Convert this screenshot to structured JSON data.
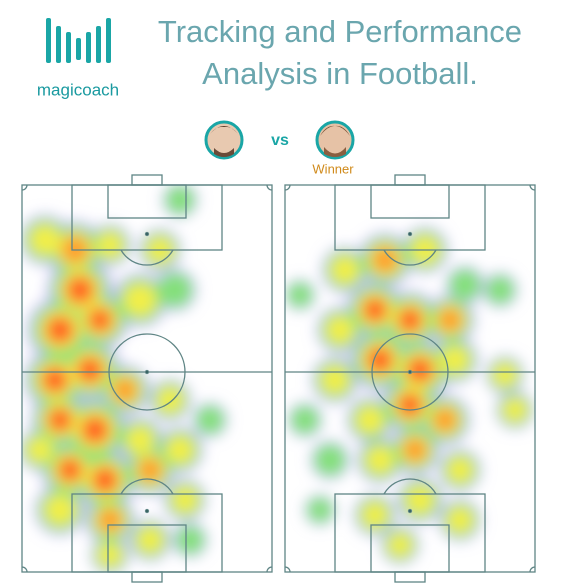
{
  "logo": {
    "text": "magicoach"
  },
  "header": {
    "title_lines": [
      "Tracking and Performance",
      "Analysis in Football."
    ]
  },
  "versus": "vs",
  "winner_label": "Winner"
}
